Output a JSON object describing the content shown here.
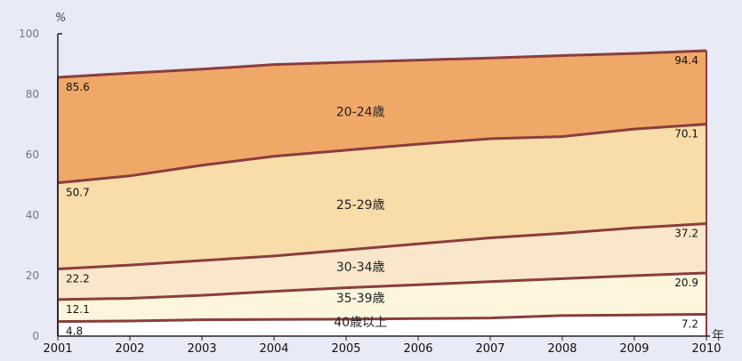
{
  "chart_data": {
    "type": "area",
    "stacked": true,
    "x": [
      2001,
      2002,
      2003,
      2004,
      2005,
      2006,
      2007,
      2008,
      2009,
      2010
    ],
    "ylim": [
      0,
      100
    ],
    "yticks": [
      0,
      20,
      40,
      60,
      80,
      100
    ],
    "ylabel": "%",
    "xlabel": "年",
    "boundaries": [
      {
        "name": "40歳以上",
        "values": [
          4.8,
          5.0,
          5.4,
          5.5,
          5.6,
          5.8,
          6.0,
          6.8,
          7.0,
          7.2
        ]
      },
      {
        "name": "35-39歳",
        "values": [
          12.1,
          12.5,
          13.5,
          14.8,
          16.0,
          17.0,
          18.0,
          19.0,
          20.0,
          20.9
        ]
      },
      {
        "name": "30-34歳",
        "values": [
          22.2,
          23.5,
          25.0,
          26.5,
          28.5,
          30.5,
          32.5,
          34.0,
          35.8,
          37.2
        ]
      },
      {
        "name": "25-29歳",
        "values": [
          50.7,
          53.0,
          56.5,
          59.5,
          61.5,
          63.5,
          65.3,
          66.0,
          68.5,
          70.1
        ]
      },
      {
        "name": "20-24歳",
        "values": [
          85.6,
          87.0,
          88.3,
          89.8,
          90.6,
          91.3,
          92.0,
          92.8,
          93.5,
          94.4
        ]
      }
    ],
    "band_labels": [
      "40歳以上",
      "35-39歳",
      "30-34歳",
      "25-29歳",
      "20-24歳"
    ],
    "start_labels": [
      "4.8",
      "12.1",
      "22.2",
      "50.7",
      "85.6"
    ],
    "end_labels": [
      "7.2",
      "20.9",
      "37.2",
      "70.1",
      "94.4"
    ],
    "colors": {
      "20-24": "#f0a868",
      "25-29": "#f8dcaa",
      "30-34": "#f9e6cb",
      "35-39": "#fdf6dd",
      "40plus": "#ffffff",
      "boundary": "#8a3d3d",
      "background": "#e8eaf6"
    }
  }
}
